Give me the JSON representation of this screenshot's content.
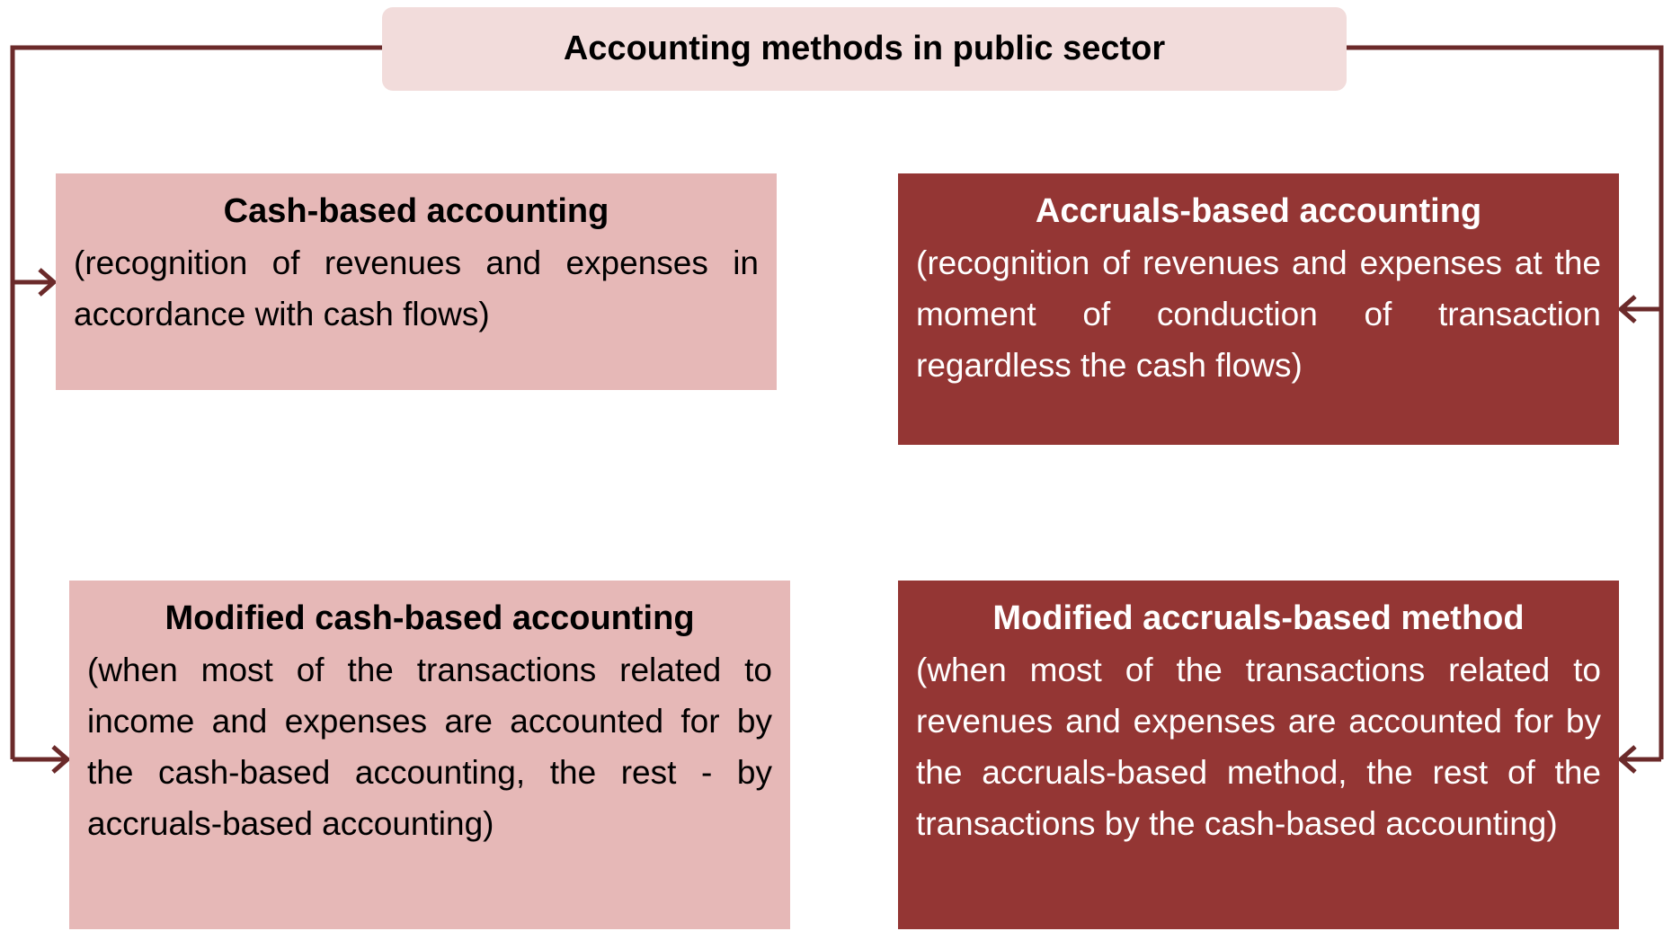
{
  "title": "Accounting methods in public sector",
  "boxes": [
    {
      "heading": "Cash-based accounting",
      "text": "(recognition of revenues and expenses in accordance with cash flows)"
    },
    {
      "heading": "Accruals-based accounting",
      "text": "(recognition of revenues and expenses at the moment of conduction of transaction regardless the cash flows)"
    },
    {
      "heading": "Modified cash-based accounting",
      "text": "(when most of the transactions related to income and expenses are accounted for by the cash-based accounting, the rest - by accruals-based accounting)"
    },
    {
      "heading": "Modified accruals-based method",
      "text": "(when most of the transactions related to revenues and expenses are accounted for by the accruals-based method,  the rest of the transactions by the cash-based accounting)"
    }
  ]
}
